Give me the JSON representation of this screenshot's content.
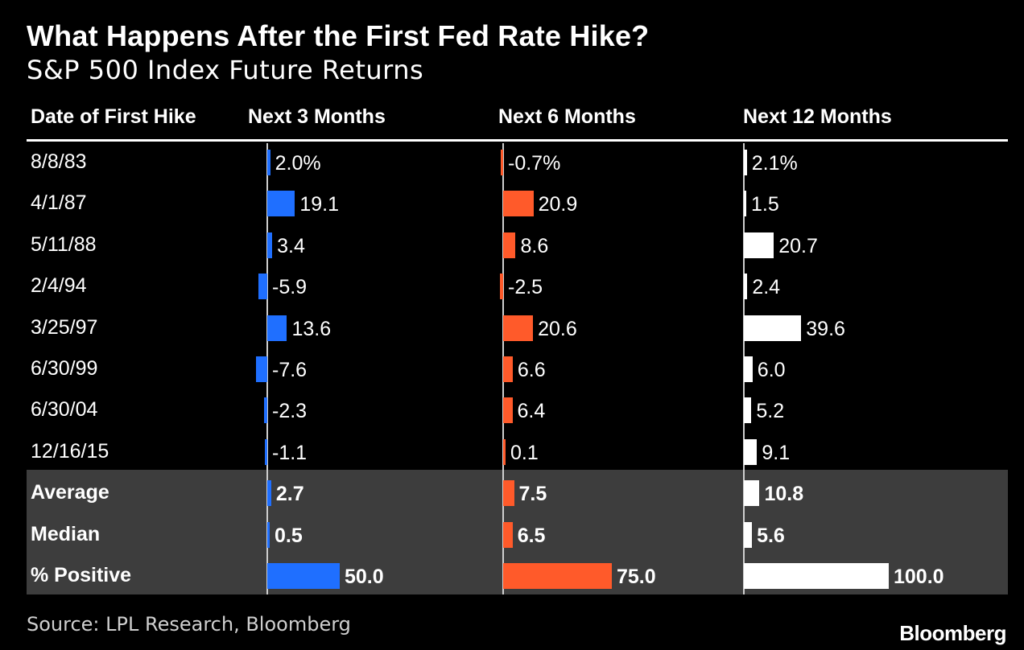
{
  "title": "What Happens After the First Fed Rate Hike?",
  "subtitle": "S&P 500 Index Future Returns",
  "source": "Source: LPL Research, Bloomberg",
  "brand": "Bloomberg",
  "colors": {
    "next3": "#1f6fff",
    "next6": "#ff5a2a",
    "next12": "#ffffff",
    "summary_bg": "#3d3d3d"
  },
  "chart_data": {
    "type": "bar",
    "columns": [
      "Date of First Hike",
      "Next 3 Months",
      "Next 6 Months",
      "Next 12 Months"
    ],
    "rows": [
      {
        "label": "8/8/83",
        "values": [
          2.0,
          -0.7,
          2.1
        ],
        "texts": [
          "2.0%",
          "-0.7%",
          "2.1%"
        ],
        "summary": false
      },
      {
        "label": "4/1/87",
        "values": [
          19.1,
          20.9,
          1.5
        ],
        "texts": [
          "19.1",
          "20.9",
          "1.5"
        ],
        "summary": false
      },
      {
        "label": "5/11/88",
        "values": [
          3.4,
          8.6,
          20.7
        ],
        "texts": [
          "3.4",
          "8.6",
          "20.7"
        ],
        "summary": false
      },
      {
        "label": "2/4/94",
        "values": [
          -5.9,
          -2.5,
          2.4
        ],
        "texts": [
          "-5.9",
          "-2.5",
          "2.4"
        ],
        "summary": false
      },
      {
        "label": "3/25/97",
        "values": [
          13.6,
          20.6,
          39.6
        ],
        "texts": [
          "13.6",
          "20.6",
          "39.6"
        ],
        "summary": false
      },
      {
        "label": "6/30/99",
        "values": [
          -7.6,
          6.6,
          6.0
        ],
        "texts": [
          "-7.6",
          "6.6",
          "6.0"
        ],
        "summary": false
      },
      {
        "label": "6/30/04",
        "values": [
          -2.3,
          6.4,
          5.2
        ],
        "texts": [
          "-2.3",
          "6.4",
          "5.2"
        ],
        "summary": false
      },
      {
        "label": "12/16/15",
        "values": [
          -1.1,
          0.1,
          9.1
        ],
        "texts": [
          "-1.1",
          "0.1",
          "9.1"
        ],
        "summary": false
      },
      {
        "label": "Average",
        "values": [
          2.7,
          7.5,
          10.8
        ],
        "texts": [
          "2.7",
          "7.5",
          "10.8"
        ],
        "summary": true
      },
      {
        "label": "Median",
        "values": [
          0.5,
          6.5,
          5.6
        ],
        "texts": [
          "0.5",
          "6.5",
          "5.6"
        ],
        "summary": true
      },
      {
        "label": "% Positive",
        "values": [
          50.0,
          75.0,
          100.0
        ],
        "texts": [
          "50.0",
          "75.0",
          "100.0"
        ],
        "summary": true
      }
    ]
  }
}
